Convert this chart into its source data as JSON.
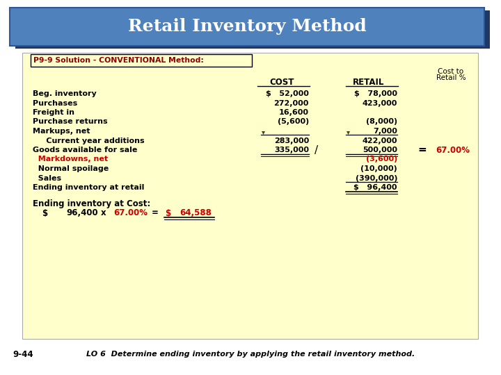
{
  "title": "Retail Inventory Method",
  "title_bg": "#4F81BD",
  "title_shadow": "#1F3864",
  "title_color": "white",
  "body_bg": "#FFFFCC",
  "slide_bg": "#FFFFFF",
  "header_text": "P9-9 Solution - CONVENTIONAL Method:",
  "header_color": "#8B0000",
  "rows": [
    {
      "label": "Beg. inventory",
      "cost": "$   52,000",
      "retail": "$   78,000",
      "pct": "",
      "lc": "black",
      "rc": "black"
    },
    {
      "label": "Purchases",
      "cost": "272,000",
      "retail": "423,000",
      "pct": "",
      "lc": "black",
      "rc": "black"
    },
    {
      "label": "Freight in",
      "cost": "16,600",
      "retail": "",
      "pct": "",
      "lc": "black",
      "rc": "black"
    },
    {
      "label": "Purchase returns",
      "cost": "(5,600)",
      "retail": "(8,000)",
      "pct": "",
      "lc": "black",
      "rc": "black"
    },
    {
      "label": "Markups, net",
      "cost": "",
      "retail": "7,000",
      "pct": "",
      "lc": "black",
      "rc": "black"
    },
    {
      "label": "     Current year additions",
      "cost": "283,000",
      "retail": "422,000",
      "pct": "",
      "lc": "black",
      "rc": "black"
    },
    {
      "label": "Goods available for sale",
      "cost": "335,000",
      "retail": "500,000",
      "pct": "67.00%",
      "lc": "black",
      "rc": "black"
    },
    {
      "label": "  Markdowns, net",
      "cost": "",
      "retail": "(3,600)",
      "pct": "",
      "lc": "#CC0000",
      "rc": "#CC0000"
    },
    {
      "label": "  Normal spoilage",
      "cost": "",
      "retail": "(10,000)",
      "pct": "",
      "lc": "black",
      "rc": "black"
    },
    {
      "label": "  Sales",
      "cost": "",
      "retail": "(390,000)",
      "pct": "",
      "lc": "black",
      "rc": "black"
    },
    {
      "label": "Ending inventory at retail",
      "cost": "",
      "retail": "$   96,400",
      "pct": "",
      "lc": "black",
      "rc": "black"
    }
  ],
  "col_cost_label": "COST",
  "col_retail_label": "RETAIL",
  "col_pct_label1": "Cost to",
  "col_pct_label2": "Retail %",
  "ending_label": "Ending inventory at Cost:",
  "ending_dollar": "$",
  "ending_amount": "96,400",
  "ending_x": "x",
  "ending_pct": "67.00%",
  "ending_eq": "=",
  "ending_dollar2": "$",
  "ending_final": "64,588",
  "footer_num": "9-44",
  "footer_text": "LO 6  Determine ending inventory by applying the retail inventory method."
}
